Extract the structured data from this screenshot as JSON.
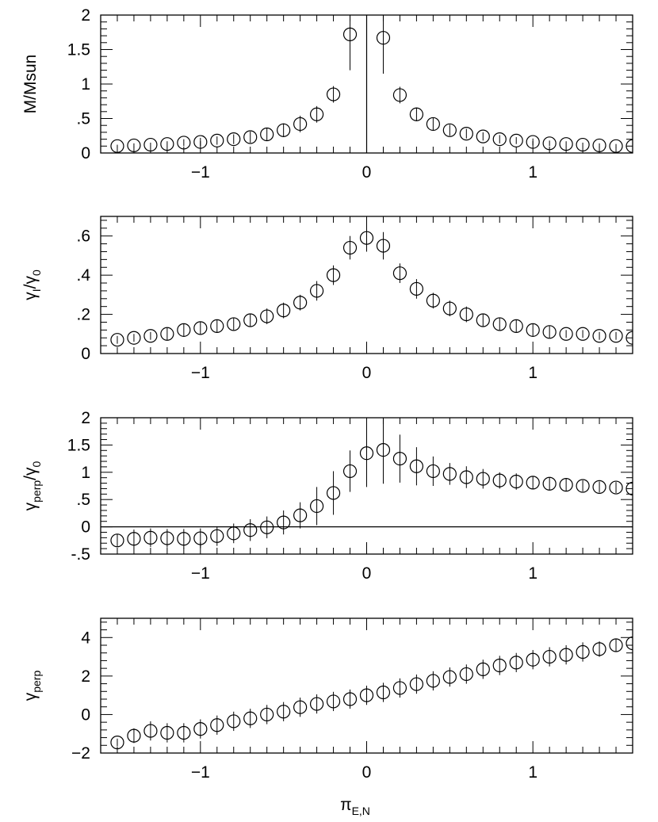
{
  "figure": {
    "xlabel": "π",
    "xlabel_sub": "E,N"
  },
  "chart_data": [
    {
      "type": "scatter",
      "ylabel": "M/Msun",
      "ylabel_sub": "",
      "ylabel_tail": "",
      "xlim": [
        -1.6,
        1.6
      ],
      "ylim": [
        0,
        2
      ],
      "xticks": [
        -1,
        0,
        1
      ],
      "xtick_labels": [
        "−1",
        "0",
        "1"
      ],
      "yticks": [
        0,
        0.5,
        1,
        1.5,
        2
      ],
      "ytick_labels": [
        "0",
        ".5",
        "1",
        "1.5",
        "2"
      ],
      "reference_line": {
        "orientation": "vertical",
        "value": 0
      },
      "x": [
        -1.5,
        -1.4,
        -1.3,
        -1.2,
        -1.1,
        -1.0,
        -0.9,
        -0.8,
        -0.7,
        -0.6,
        -0.5,
        -0.4,
        -0.3,
        -0.2,
        -0.1,
        0.1,
        0.2,
        0.3,
        0.4,
        0.5,
        0.6,
        0.7,
        0.8,
        0.9,
        1.0,
        1.1,
        1.2,
        1.3,
        1.4,
        1.5,
        1.6
      ],
      "y": [
        0.1,
        0.11,
        0.12,
        0.13,
        0.15,
        0.16,
        0.18,
        0.2,
        0.23,
        0.27,
        0.33,
        0.42,
        0.56,
        0.85,
        1.72,
        1.67,
        0.84,
        0.56,
        0.42,
        0.33,
        0.28,
        0.24,
        0.2,
        0.18,
        0.16,
        0.14,
        0.13,
        0.12,
        0.11,
        0.1,
        0.1
      ],
      "err": [
        0.02,
        0.03,
        0.03,
        0.04,
        0.05,
        0.06,
        0.06,
        0.07,
        0.08,
        0.09,
        0.1,
        0.12,
        0.12,
        0.12,
        0.52,
        0.52,
        0.12,
        0.1,
        0.09,
        0.08,
        0.07,
        0.06,
        0.06,
        0.05,
        0.05,
        0.04,
        0.04,
        0.03,
        0.03,
        0.03,
        0.02
      ]
    },
    {
      "type": "scatter",
      "ylabel": "γ",
      "ylabel_sub": "I",
      "ylabel_tail": "/γ",
      "ylabel_tail_sub": "0",
      "xlim": [
        -1.6,
        1.6
      ],
      "ylim": [
        0,
        0.7
      ],
      "xticks": [
        -1,
        0,
        1
      ],
      "xtick_labels": [
        "−1",
        "0",
        "1"
      ],
      "yticks": [
        0,
        0.2,
        0.4,
        0.6
      ],
      "ytick_labels": [
        "0",
        ".2",
        ".4",
        ".6"
      ],
      "x": [
        -1.5,
        -1.4,
        -1.3,
        -1.2,
        -1.1,
        -1.0,
        -0.9,
        -0.8,
        -0.7,
        -0.6,
        -0.5,
        -0.4,
        -0.3,
        -0.2,
        -0.1,
        0.0,
        0.1,
        0.2,
        0.3,
        0.4,
        0.5,
        0.6,
        0.7,
        0.8,
        0.9,
        1.0,
        1.1,
        1.2,
        1.3,
        1.4,
        1.5,
        1.6
      ],
      "y": [
        0.07,
        0.08,
        0.09,
        0.1,
        0.12,
        0.13,
        0.14,
        0.15,
        0.17,
        0.19,
        0.22,
        0.26,
        0.32,
        0.4,
        0.54,
        0.59,
        0.55,
        0.41,
        0.33,
        0.27,
        0.23,
        0.2,
        0.17,
        0.15,
        0.14,
        0.12,
        0.11,
        0.1,
        0.1,
        0.09,
        0.09,
        0.08
      ],
      "err": [
        0.02,
        0.02,
        0.02,
        0.03,
        0.03,
        0.03,
        0.03,
        0.03,
        0.03,
        0.04,
        0.04,
        0.04,
        0.05,
        0.05,
        0.06,
        0.07,
        0.07,
        0.05,
        0.05,
        0.04,
        0.04,
        0.04,
        0.03,
        0.03,
        0.03,
        0.03,
        0.03,
        0.02,
        0.02,
        0.02,
        0.02,
        0.02
      ]
    },
    {
      "type": "scatter",
      "ylabel": "γ",
      "ylabel_sub": "perp",
      "ylabel_tail": "/γ",
      "ylabel_tail_sub": "0",
      "xlim": [
        -1.6,
        1.6
      ],
      "ylim": [
        -0.5,
        2
      ],
      "xticks": [
        -1,
        0,
        1
      ],
      "xtick_labels": [
        "−1",
        "0",
        "1"
      ],
      "yticks": [
        -0.5,
        0,
        0.5,
        1,
        1.5,
        2
      ],
      "ytick_labels": [
        "-.5",
        "0",
        ".5",
        "1",
        "1.5",
        "2"
      ],
      "reference_line": {
        "orientation": "horizontal",
        "value": 0
      },
      "x": [
        -1.5,
        -1.4,
        -1.3,
        -1.2,
        -1.1,
        -1.0,
        -0.9,
        -0.8,
        -0.7,
        -0.6,
        -0.5,
        -0.4,
        -0.3,
        -0.2,
        -0.1,
        0.0,
        0.1,
        0.2,
        0.3,
        0.4,
        0.5,
        0.6,
        0.7,
        0.8,
        0.9,
        1.0,
        1.1,
        1.2,
        1.3,
        1.4,
        1.5,
        1.6
      ],
      "y": [
        -0.25,
        -0.22,
        -0.2,
        -0.21,
        -0.22,
        -0.21,
        -0.17,
        -0.12,
        -0.06,
        -0.01,
        0.08,
        0.21,
        0.38,
        0.62,
        1.02,
        1.35,
        1.41,
        1.25,
        1.11,
        1.02,
        0.97,
        0.91,
        0.88,
        0.85,
        0.83,
        0.81,
        0.79,
        0.77,
        0.75,
        0.73,
        0.72,
        0.7
      ],
      "err": [
        0.12,
        0.17,
        0.17,
        0.17,
        0.18,
        0.18,
        0.18,
        0.18,
        0.2,
        0.2,
        0.22,
        0.24,
        0.35,
        0.4,
        0.38,
        0.62,
        0.62,
        0.44,
        0.35,
        0.27,
        0.2,
        0.2,
        0.18,
        0.15,
        0.15,
        0.12,
        0.12,
        0.12,
        0.1,
        0.1,
        0.1,
        0.1
      ]
    },
    {
      "type": "scatter",
      "ylabel": "γ",
      "ylabel_sub": "perp",
      "ylabel_tail": "",
      "xlim": [
        -1.6,
        1.6
      ],
      "ylim": [
        -2,
        5
      ],
      "xticks": [
        -1,
        0,
        1
      ],
      "xtick_labels": [
        "−1",
        "0",
        "1"
      ],
      "yticks": [
        -2,
        0,
        2,
        4
      ],
      "ytick_labels": [
        "−2",
        "0",
        "2",
        "4"
      ],
      "x": [
        -1.5,
        -1.4,
        -1.3,
        -1.2,
        -1.1,
        -1.0,
        -0.9,
        -0.8,
        -0.7,
        -0.6,
        -0.5,
        -0.4,
        -0.3,
        -0.2,
        -0.1,
        0.0,
        0.1,
        0.2,
        0.3,
        0.4,
        0.5,
        0.6,
        0.7,
        0.8,
        0.9,
        1.0,
        1.1,
        1.2,
        1.3,
        1.4,
        1.5,
        1.6
      ],
      "y": [
        -1.45,
        -1.1,
        -0.85,
        -0.95,
        -0.95,
        -0.75,
        -0.55,
        -0.35,
        -0.2,
        0.0,
        0.15,
        0.38,
        0.55,
        0.68,
        0.8,
        1.0,
        1.15,
        1.38,
        1.58,
        1.75,
        1.95,
        2.1,
        2.35,
        2.55,
        2.7,
        2.85,
        3.0,
        3.1,
        3.25,
        3.4,
        3.6,
        3.7
      ],
      "err": [
        0.2,
        0.38,
        0.5,
        0.5,
        0.5,
        0.5,
        0.5,
        0.5,
        0.5,
        0.5,
        0.5,
        0.5,
        0.5,
        0.5,
        0.5,
        0.5,
        0.5,
        0.5,
        0.5,
        0.5,
        0.5,
        0.5,
        0.5,
        0.5,
        0.5,
        0.5,
        0.5,
        0.5,
        0.5,
        0.4,
        0.35,
        0.3
      ]
    }
  ]
}
